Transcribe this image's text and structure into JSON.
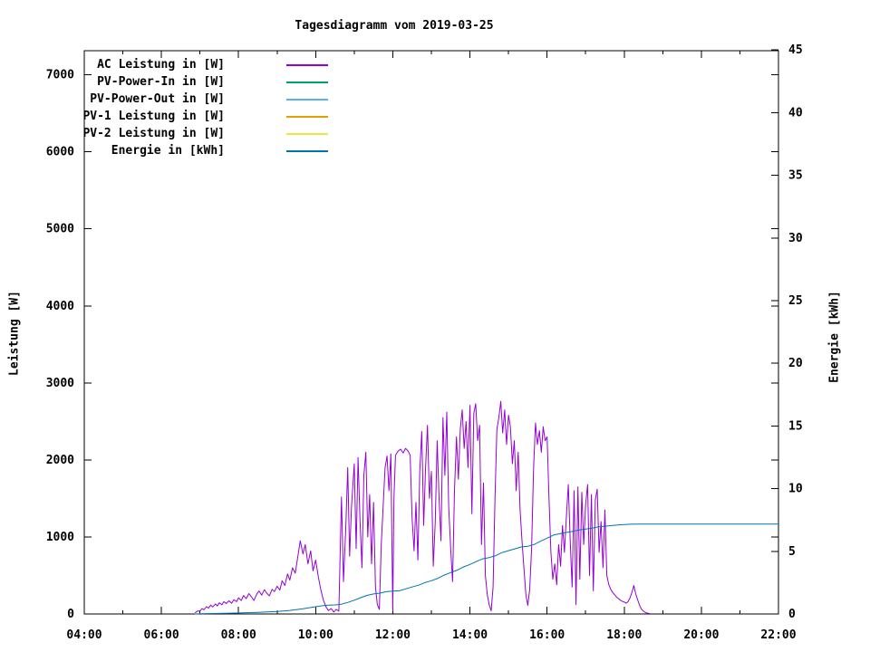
{
  "title": "Tagesdiagramm vom 2019-03-25",
  "colors": {
    "ac": "#9400d3",
    "pv_power_in": "#009e73",
    "pv_power_out": "#56b4e9",
    "pv1": "#e69f00",
    "pv2": "#f0e442",
    "energie": "#0072b2",
    "axis": "#000000",
    "background": "#ffffff"
  },
  "legend": {
    "position": "top-left-inside",
    "entries": [
      {
        "label": "AC Leistung in [W]",
        "color_key": "ac"
      },
      {
        "label": "PV-Power-In in [W]",
        "color_key": "pv_power_in"
      },
      {
        "label": "PV-Power-Out in [W]",
        "color_key": "pv_power_out"
      },
      {
        "label": "PV-1 Leistung in [W]",
        "color_key": "pv1"
      },
      {
        "label": "PV-2 Leistung in [W]",
        "color_key": "pv2"
      },
      {
        "label": "Energie in [kWh]",
        "color_key": "energie"
      }
    ]
  },
  "chart_data": {
    "type": "line",
    "title": "Tagesdiagramm vom 2019-03-25",
    "grid": false,
    "x_axis": {
      "label": "",
      "unit": "time",
      "range_hours": [
        4,
        22
      ],
      "major_tick_hours": 2,
      "minor_tick_hours": 1,
      "tick_labels": [
        "04:00",
        "06:00",
        "08:00",
        "10:00",
        "12:00",
        "14:00",
        "16:00",
        "18:00",
        "20:00",
        "22:00"
      ]
    },
    "y1_axis": {
      "label": "Leistung [W]",
      "range": [
        0,
        7320
      ],
      "tick_values": [
        0,
        1000,
        2000,
        3000,
        4000,
        5000,
        6000,
        7000
      ]
    },
    "y2_axis": {
      "label": "Energie [kWh]",
      "range": [
        0,
        45
      ],
      "tick_values": [
        0,
        5,
        10,
        15,
        20,
        25,
        30,
        35,
        40,
        45
      ]
    },
    "series": [
      {
        "name": "AC Leistung in [W]",
        "axis": "y1",
        "color_key": "ac",
        "visible": true,
        "points": [
          [
            6.87,
            15
          ],
          [
            6.95,
            40
          ],
          [
            7.0,
            35
          ],
          [
            7.05,
            70
          ],
          [
            7.1,
            55
          ],
          [
            7.17,
            95
          ],
          [
            7.22,
            75
          ],
          [
            7.28,
            115
          ],
          [
            7.33,
            90
          ],
          [
            7.4,
            130
          ],
          [
            7.45,
            105
          ],
          [
            7.5,
            145
          ],
          [
            7.57,
            120
          ],
          [
            7.62,
            160
          ],
          [
            7.68,
            135
          ],
          [
            7.75,
            170
          ],
          [
            7.82,
            140
          ],
          [
            7.88,
            185
          ],
          [
            7.95,
            160
          ],
          [
            8.0,
            210
          ],
          [
            8.07,
            175
          ],
          [
            8.13,
            240
          ],
          [
            8.2,
            200
          ],
          [
            8.27,
            265
          ],
          [
            8.33,
            225
          ],
          [
            8.4,
            175
          ],
          [
            8.47,
            255
          ],
          [
            8.53,
            300
          ],
          [
            8.6,
            245
          ],
          [
            8.67,
            315
          ],
          [
            8.73,
            270
          ],
          [
            8.8,
            235
          ],
          [
            8.87,
            320
          ],
          [
            8.93,
            290
          ],
          [
            9.0,
            360
          ],
          [
            9.07,
            310
          ],
          [
            9.13,
            430
          ],
          [
            9.2,
            370
          ],
          [
            9.27,
            520
          ],
          [
            9.33,
            440
          ],
          [
            9.4,
            600
          ],
          [
            9.47,
            530
          ],
          [
            9.53,
            720
          ],
          [
            9.6,
            950
          ],
          [
            9.67,
            780
          ],
          [
            9.73,
            900
          ],
          [
            9.8,
            650
          ],
          [
            9.87,
            820
          ],
          [
            9.93,
            560
          ],
          [
            10.0,
            700
          ],
          [
            10.07,
            480
          ],
          [
            10.13,
            320
          ],
          [
            10.2,
            180
          ],
          [
            10.27,
            90
          ],
          [
            10.33,
            45
          ],
          [
            10.4,
            70
          ],
          [
            10.47,
            25
          ],
          [
            10.53,
            60
          ],
          [
            10.6,
            35
          ],
          [
            10.67,
            1520
          ],
          [
            10.72,
            420
          ],
          [
            10.78,
            1100
          ],
          [
            10.83,
            1900
          ],
          [
            10.88,
            750
          ],
          [
            10.93,
            1400
          ],
          [
            11.0,
            1950
          ],
          [
            11.05,
            850
          ],
          [
            11.1,
            2030
          ],
          [
            11.15,
            1200
          ],
          [
            11.2,
            600
          ],
          [
            11.25,
            1800
          ],
          [
            11.3,
            2100
          ],
          [
            11.35,
            1000
          ],
          [
            11.4,
            1550
          ],
          [
            11.45,
            650
          ],
          [
            11.5,
            1450
          ],
          [
            11.55,
            350
          ],
          [
            11.6,
            120
          ],
          [
            11.65,
            60
          ],
          [
            11.7,
            900
          ],
          [
            11.75,
            1400
          ],
          [
            11.8,
            1900
          ],
          [
            11.85,
            2050
          ],
          [
            11.9,
            1600
          ],
          [
            11.95,
            2080
          ],
          [
            12.0,
            40
          ],
          [
            12.03,
            1500
          ],
          [
            12.07,
            2060
          ],
          [
            12.13,
            2110
          ],
          [
            12.2,
            2140
          ],
          [
            12.27,
            2090
          ],
          [
            12.33,
            2150
          ],
          [
            12.4,
            2110
          ],
          [
            12.45,
            2060
          ],
          [
            12.5,
            1250
          ],
          [
            12.55,
            820
          ],
          [
            12.6,
            1450
          ],
          [
            12.65,
            700
          ],
          [
            12.7,
            1850
          ],
          [
            12.75,
            2370
          ],
          [
            12.8,
            1150
          ],
          [
            12.85,
            1900
          ],
          [
            12.9,
            2450
          ],
          [
            12.95,
            1500
          ],
          [
            13.0,
            1850
          ],
          [
            13.05,
            620
          ],
          [
            13.1,
            1200
          ],
          [
            13.15,
            2250
          ],
          [
            13.2,
            1500
          ],
          [
            13.25,
            950
          ],
          [
            13.3,
            2550
          ],
          [
            13.35,
            1800
          ],
          [
            13.4,
            2620
          ],
          [
            13.45,
            1400
          ],
          [
            13.5,
            850
          ],
          [
            13.55,
            420
          ],
          [
            13.6,
            1600
          ],
          [
            13.65,
            2300
          ],
          [
            13.7,
            1750
          ],
          [
            13.75,
            2400
          ],
          [
            13.8,
            2650
          ],
          [
            13.85,
            2150
          ],
          [
            13.9,
            2500
          ],
          [
            13.95,
            1900
          ],
          [
            14.0,
            2710
          ],
          [
            14.05,
            1300
          ],
          [
            14.1,
            2600
          ],
          [
            14.15,
            2730
          ],
          [
            14.2,
            2250
          ],
          [
            14.25,
            2450
          ],
          [
            14.3,
            900
          ],
          [
            14.35,
            1700
          ],
          [
            14.4,
            500
          ],
          [
            14.45,
            250
          ],
          [
            14.5,
            120
          ],
          [
            14.55,
            40
          ],
          [
            14.6,
            350
          ],
          [
            14.65,
            1500
          ],
          [
            14.7,
            2400
          ],
          [
            14.75,
            2550
          ],
          [
            14.8,
            2760
          ],
          [
            14.85,
            2350
          ],
          [
            14.9,
            2650
          ],
          [
            14.95,
            2200
          ],
          [
            15.0,
            2580
          ],
          [
            15.05,
            2430
          ],
          [
            15.1,
            1950
          ],
          [
            15.15,
            2250
          ],
          [
            15.2,
            1600
          ],
          [
            15.25,
            2100
          ],
          [
            15.3,
            1350
          ],
          [
            15.35,
            950
          ],
          [
            15.4,
            600
          ],
          [
            15.45,
            250
          ],
          [
            15.5,
            110
          ],
          [
            15.55,
            320
          ],
          [
            15.6,
            850
          ],
          [
            15.65,
            1900
          ],
          [
            15.7,
            2480
          ],
          [
            15.75,
            2200
          ],
          [
            15.8,
            2380
          ],
          [
            15.85,
            2100
          ],
          [
            15.9,
            2430
          ],
          [
            15.95,
            2250
          ],
          [
            16.0,
            2300
          ],
          [
            16.05,
            1500
          ],
          [
            16.1,
            800
          ],
          [
            16.15,
            450
          ],
          [
            16.2,
            650
          ],
          [
            16.25,
            380
          ],
          [
            16.3,
            900
          ],
          [
            16.35,
            620
          ],
          [
            16.4,
            1150
          ],
          [
            16.45,
            800
          ],
          [
            16.5,
            1250
          ],
          [
            16.55,
            1680
          ],
          [
            16.6,
            950
          ],
          [
            16.65,
            350
          ],
          [
            16.7,
            1600
          ],
          [
            16.75,
            120
          ],
          [
            16.8,
            1650
          ],
          [
            16.85,
            450
          ],
          [
            16.9,
            1580
          ],
          [
            16.95,
            900
          ],
          [
            17.0,
            1420
          ],
          [
            17.05,
            1680
          ],
          [
            17.1,
            500
          ],
          [
            17.15,
            1550
          ],
          [
            17.2,
            300
          ],
          [
            17.25,
            1480
          ],
          [
            17.3,
            1620
          ],
          [
            17.35,
            800
          ],
          [
            17.4,
            1200
          ],
          [
            17.45,
            600
          ],
          [
            17.5,
            1350
          ],
          [
            17.55,
            500
          ],
          [
            17.6,
            380
          ],
          [
            17.65,
            320
          ],
          [
            17.7,
            280
          ],
          [
            17.75,
            250
          ],
          [
            17.8,
            220
          ],
          [
            17.85,
            200
          ],
          [
            17.9,
            180
          ],
          [
            17.95,
            165
          ],
          [
            18.0,
            155
          ],
          [
            18.05,
            140
          ],
          [
            18.1,
            160
          ],
          [
            18.15,
            210
          ],
          [
            18.2,
            280
          ],
          [
            18.25,
            370
          ],
          [
            18.3,
            260
          ],
          [
            18.35,
            180
          ],
          [
            18.4,
            110
          ],
          [
            18.45,
            60
          ],
          [
            18.5,
            35
          ],
          [
            18.55,
            20
          ],
          [
            18.6,
            10
          ],
          [
            18.67,
            5
          ]
        ]
      },
      {
        "name": "PV-Power-In in [W]",
        "axis": "y1",
        "color_key": "pv_power_in",
        "visible": false,
        "points": []
      },
      {
        "name": "PV-Power-Out in [W]",
        "axis": "y1",
        "color_key": "pv_power_out",
        "visible": false,
        "points": []
      },
      {
        "name": "PV-1 Leistung in [W]",
        "axis": "y1",
        "color_key": "pv1",
        "visible": false,
        "points": []
      },
      {
        "name": "PV-2 Leistung in [W]",
        "axis": "y1",
        "color_key": "pv2",
        "visible": false,
        "points": []
      },
      {
        "name": "Energie in [kWh]",
        "axis": "y2",
        "color_key": "energie",
        "visible": true,
        "points": [
          [
            6.87,
            0.0
          ],
          [
            7.0,
            0.02
          ],
          [
            7.5,
            0.04
          ],
          [
            8.0,
            0.08
          ],
          [
            8.5,
            0.13
          ],
          [
            9.0,
            0.2
          ],
          [
            9.33,
            0.28
          ],
          [
            9.67,
            0.42
          ],
          [
            10.0,
            0.58
          ],
          [
            10.17,
            0.66
          ],
          [
            10.33,
            0.7
          ],
          [
            10.5,
            0.72
          ],
          [
            10.67,
            0.78
          ],
          [
            10.83,
            0.92
          ],
          [
            11.0,
            1.1
          ],
          [
            11.17,
            1.3
          ],
          [
            11.33,
            1.48
          ],
          [
            11.5,
            1.6
          ],
          [
            11.67,
            1.66
          ],
          [
            11.83,
            1.78
          ],
          [
            12.0,
            1.82
          ],
          [
            12.17,
            1.85
          ],
          [
            12.33,
            2.0
          ],
          [
            12.5,
            2.15
          ],
          [
            12.67,
            2.3
          ],
          [
            12.83,
            2.5
          ],
          [
            13.0,
            2.65
          ],
          [
            13.17,
            2.85
          ],
          [
            13.33,
            3.1
          ],
          [
            13.5,
            3.3
          ],
          [
            13.67,
            3.5
          ],
          [
            13.83,
            3.75
          ],
          [
            14.0,
            3.95
          ],
          [
            14.17,
            4.2
          ],
          [
            14.33,
            4.4
          ],
          [
            14.5,
            4.5
          ],
          [
            14.67,
            4.65
          ],
          [
            14.83,
            4.9
          ],
          [
            15.0,
            5.05
          ],
          [
            15.17,
            5.2
          ],
          [
            15.33,
            5.35
          ],
          [
            15.5,
            5.4
          ],
          [
            15.67,
            5.55
          ],
          [
            15.83,
            5.8
          ],
          [
            16.0,
            6.05
          ],
          [
            16.17,
            6.3
          ],
          [
            16.33,
            6.4
          ],
          [
            16.5,
            6.5
          ],
          [
            16.67,
            6.6
          ],
          [
            16.83,
            6.7
          ],
          [
            17.0,
            6.78
          ],
          [
            17.17,
            6.85
          ],
          [
            17.33,
            6.95
          ],
          [
            17.5,
            7.0
          ],
          [
            17.67,
            7.05
          ],
          [
            17.83,
            7.1
          ],
          [
            18.0,
            7.13
          ],
          [
            18.17,
            7.16
          ],
          [
            18.33,
            7.17
          ],
          [
            22.0,
            7.17
          ]
        ]
      }
    ]
  }
}
